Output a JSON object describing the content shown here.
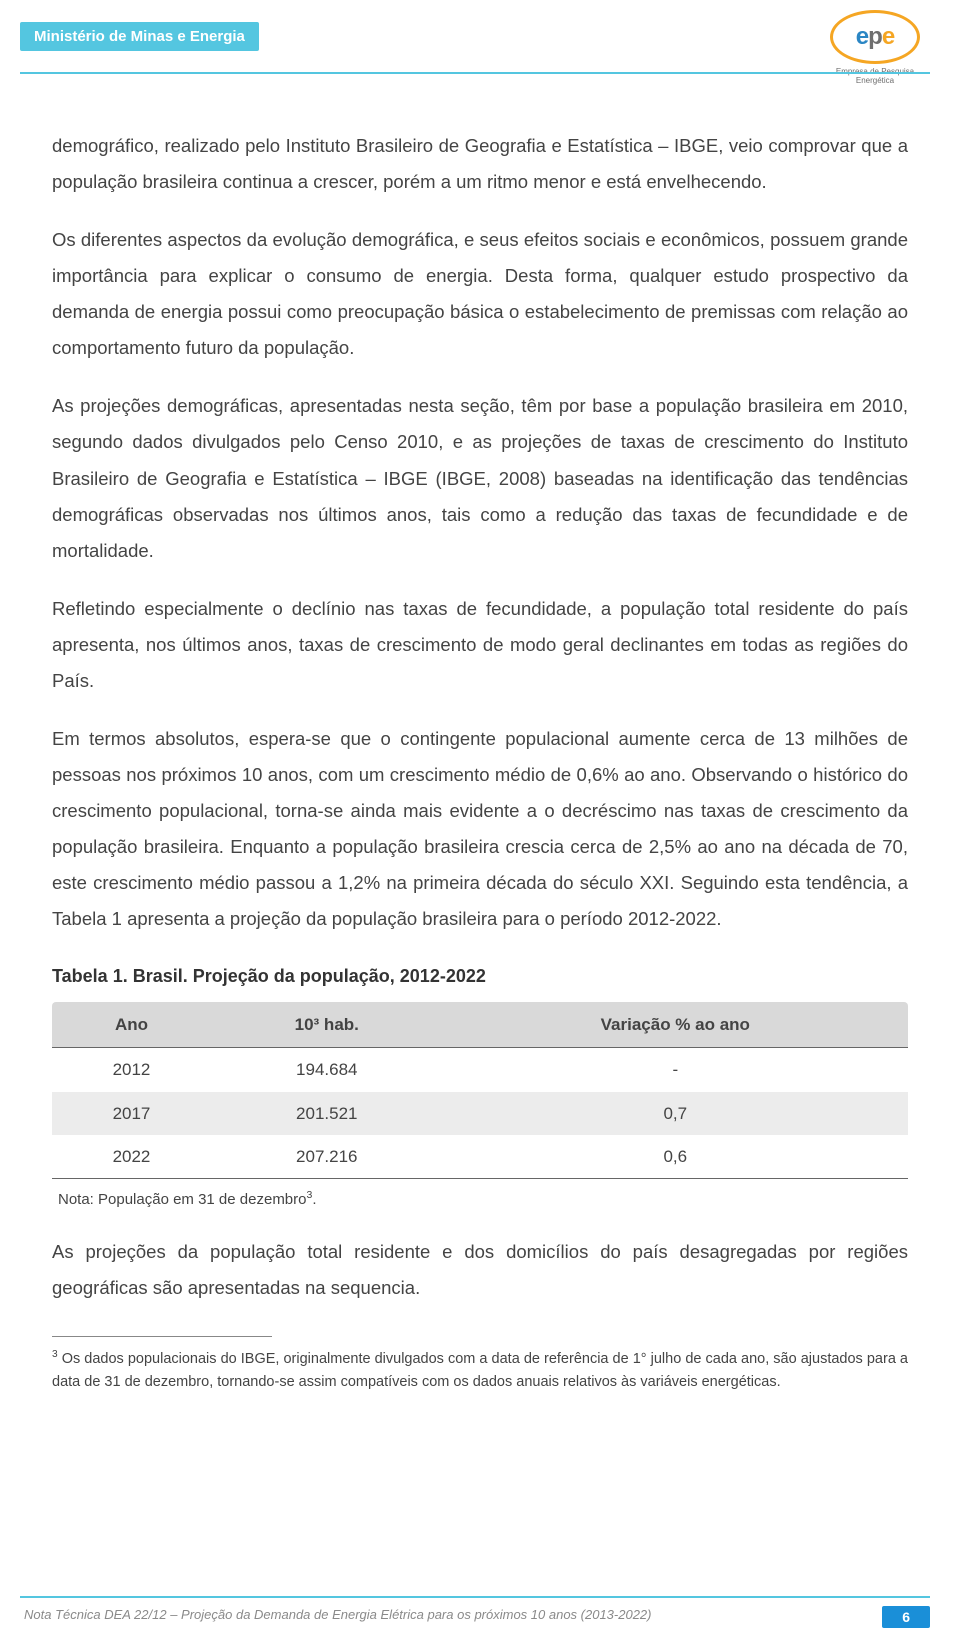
{
  "header": {
    "ministry": "Ministério de Minas e Energia",
    "logo_letters": {
      "e1": "e",
      "p": "p",
      "e2": "e"
    },
    "logo_sub": "Empresa de Pesquisa Energética"
  },
  "paragraphs": {
    "p1": "demográfico, realizado pelo Instituto Brasileiro de Geografia e Estatística – IBGE, veio comprovar que a população brasileira continua a crescer, porém a um ritmo menor e está envelhecendo.",
    "p2": "Os diferentes aspectos da evolução demográfica, e seus efeitos sociais e econômicos, possuem grande importância para explicar o consumo de energia. Desta forma, qualquer estudo prospectivo da demanda de energia possui como preocupação básica o estabelecimento de premissas com relação ao comportamento futuro da população.",
    "p3": "As projeções demográficas, apresentadas nesta seção, têm por base a população brasileira em 2010, segundo dados divulgados pelo Censo 2010, e as projeções de taxas de crescimento do Instituto Brasileiro de Geografia e Estatística – IBGE (IBGE, 2008) baseadas na identificação das tendências demográficas observadas nos últimos anos, tais como a redução das taxas de fecundidade e de mortalidade.",
    "p4": "Refletindo especialmente o declínio nas taxas de fecundidade, a população total residente do país apresenta, nos últimos anos, taxas de crescimento de modo geral declinantes em todas as regiões do País.",
    "p5": "Em termos absolutos, espera-se que o contingente populacional aumente cerca de 13 milhões de pessoas nos próximos 10 anos, com um crescimento médio de 0,6% ao ano. Observando o histórico do crescimento populacional, torna-se ainda mais evidente a o decréscimo nas taxas de crescimento da população brasileira.  Enquanto a população brasileira crescia cerca de 2,5% ao ano na década de 70, este crescimento médio passou a 1,2% na primeira década do século XXI. Seguindo esta tendência, a Tabela 1 apresenta a projeção da população brasileira para o período 2012-2022.",
    "p6": "As projeções da população total residente e dos domicílios do país desagregadas por regiões geográficas são apresentadas na sequencia."
  },
  "table": {
    "title": "Tabela 1. Brasil. Projeção da população, 2012-2022",
    "columns": [
      "Ano",
      "10³ hab.",
      "Variação % ao ano"
    ],
    "rows": [
      {
        "ano": "2012",
        "hab": "194.684",
        "var": "-"
      },
      {
        "ano": "2017",
        "hab": "201.521",
        "var": "0,7"
      },
      {
        "ano": "2022",
        "hab": "207.216",
        "var": "0,6"
      }
    ],
    "note_prefix": "Nota: População em 31 de dezembro",
    "note_sup": "3",
    "note_suffix": "."
  },
  "footnote": {
    "marker": "3",
    "text": " Os dados populacionais do IBGE, originalmente divulgados com a data de referência de 1° julho de cada ano, são ajustados para a data de 31 de dezembro, tornando-se assim compatíveis com os dados anuais relativos às variáveis energéticas."
  },
  "footer": {
    "text": "Nota Técnica DEA 22/12 – Projeção da Demanda de Energia Elétrica para os próximos 10 anos (2013-2022)",
    "page": "6"
  },
  "colors": {
    "accent": "#54c6e0",
    "page_badge": "#1a8fd8",
    "table_header_bg": "#d9d9d9",
    "table_shade_bg": "#ececec",
    "logo_border": "#f5a623",
    "logo_blue": "#2b86c4",
    "logo_grey": "#6f6f6f",
    "logo_orange": "#f5a623",
    "body_text": "#444444"
  }
}
